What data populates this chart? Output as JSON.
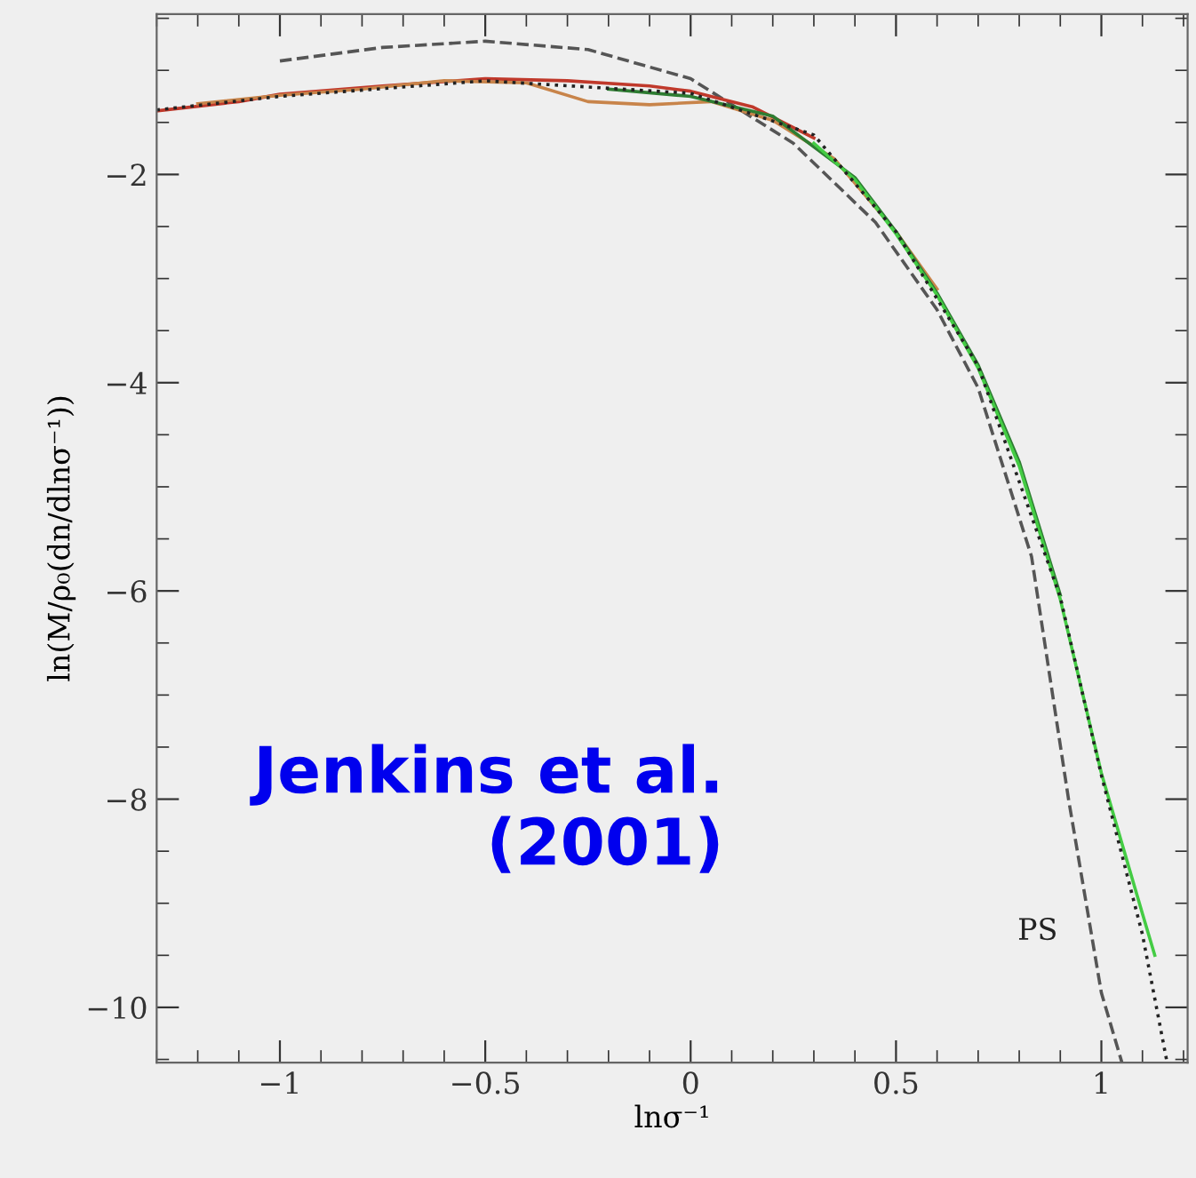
{
  "chart_data": {
    "type": "line",
    "xlabel": "lnσ⁻¹",
    "ylabel": "ln(M/ρ₀(dn/dlnσ⁻¹))",
    "xlim": [
      -1.3,
      1.21
    ],
    "ylim": [
      -10.53,
      -0.46
    ],
    "xticks": [
      -1,
      -0.5,
      0,
      0.5,
      1
    ],
    "yticks": [
      -10,
      -8,
      -6,
      -4,
      -2
    ],
    "grid": false,
    "legend": false,
    "series": [
      {
        "color": "#555555",
        "line_style": "dashed",
        "x": [
          -1.0,
          -0.75,
          -0.5,
          -0.25,
          0.0,
          0.25,
          0.45,
          0.6,
          0.7,
          0.83,
          0.92,
          1.0,
          1.05
        ],
        "values": [
          -0.91,
          -0.78,
          -0.72,
          -0.8,
          -1.08,
          -1.7,
          -2.46,
          -3.3,
          -4.05,
          -5.67,
          -8.0,
          -9.86,
          -10.53
        ]
      },
      {
        "color": "#c0392b",
        "line_style": "solid",
        "x": [
          -1.3,
          -1.1,
          -1.0,
          -0.75,
          -0.5,
          -0.3,
          -0.1,
          0.0,
          0.15,
          0.3
        ],
        "values": [
          -1.39,
          -1.3,
          -1.23,
          -1.15,
          -1.08,
          -1.1,
          -1.15,
          -1.2,
          -1.35,
          -1.65
        ]
      },
      {
        "color": "#c8844a",
        "line_style": "solid",
        "x": [
          -1.2,
          -1.0,
          -0.8,
          -0.6,
          -0.4,
          -0.25,
          -0.1,
          0.05,
          0.2,
          0.35,
          0.5,
          0.6
        ],
        "values": [
          -1.32,
          -1.24,
          -1.18,
          -1.1,
          -1.12,
          -1.3,
          -1.33,
          -1.3,
          -1.48,
          -1.85,
          -2.55,
          -3.1
        ]
      },
      {
        "color": "#2e7d32",
        "line_style": "solid",
        "x": [
          -0.2,
          0.0,
          0.2,
          0.4,
          0.5,
          0.6,
          0.7,
          0.8,
          0.9
        ],
        "values": [
          -1.18,
          -1.25,
          -1.44,
          -2.03,
          -2.55,
          -3.14,
          -3.83,
          -4.76,
          -6.04
        ]
      },
      {
        "color": "#44cc44",
        "line_style": "solid",
        "x": [
          0.3,
          0.4,
          0.5,
          0.6,
          0.7,
          0.8,
          0.9,
          1.0,
          1.1,
          1.13
        ],
        "values": [
          -1.7,
          -2.05,
          -2.57,
          -3.16,
          -3.86,
          -4.8,
          -6.08,
          -7.75,
          -9.1,
          -9.5
        ]
      },
      {
        "color": "#222222",
        "line_style": "dotted",
        "x": [
          -1.3,
          -1.0,
          -0.5,
          0.0,
          0.3,
          0.5,
          0.7,
          0.9,
          1.0,
          1.1,
          1.16
        ],
        "values": [
          -1.38,
          -1.25,
          -1.1,
          -1.22,
          -1.62,
          -2.55,
          -3.84,
          -6.06,
          -7.77,
          -9.3,
          -10.53
        ]
      }
    ],
    "annotations": [
      "PS",
      "Jenkins et al.\n(2001)"
    ]
  }
}
